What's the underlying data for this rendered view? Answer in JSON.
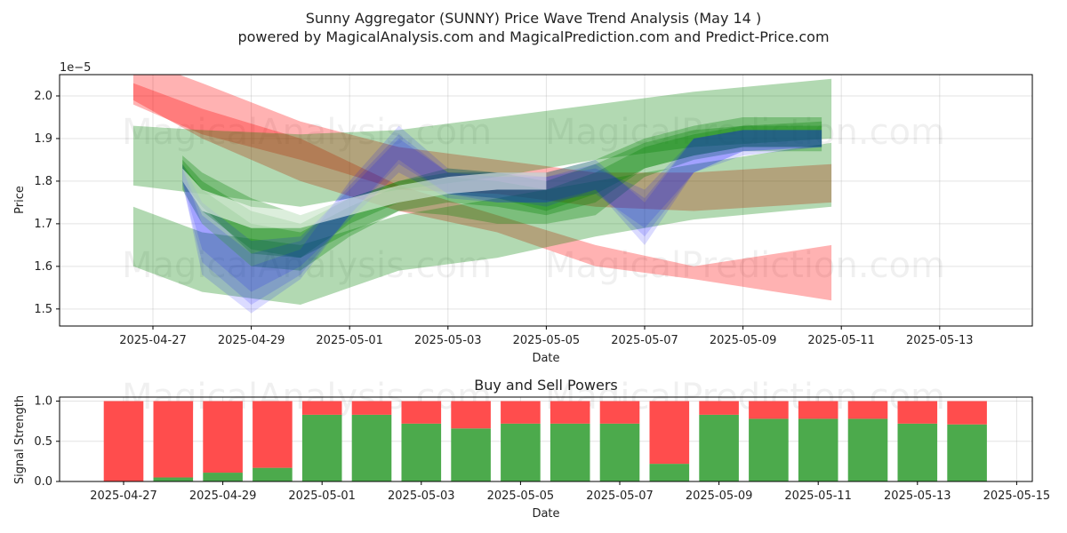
{
  "chart_data": [
    {
      "type": "area",
      "title": "Sunny Aggregator (SUNNY) Price Wave Trend Analysis (May 14 )",
      "subtitle": "powered by MagicalAnalysis.com and MagicalPrediction.com and Predict-Price.com",
      "xlabel": "Date",
      "ylabel": "Price",
      "offset_label": "1e−5",
      "ylim": [
        1.46,
        2.05
      ],
      "yticks": [
        "1.5",
        "1.6",
        "1.7",
        "1.8",
        "1.9",
        "2.0"
      ],
      "xticks": [
        "2025-04-27",
        "2025-04-29",
        "2025-05-01",
        "2025-05-03",
        "2025-05-05",
        "2025-05-07",
        "2025-05-09",
        "2025-05-11",
        "2025-05-13"
      ],
      "grid": true,
      "watermarks": [
        "MagicalAnalysis.com",
        "MagicalPrediction.com"
      ],
      "bands": [
        {
          "color": "#ff0000",
          "points": [
            [
              -0.4,
              2.03,
              1.99
            ],
            [
              1,
              1.97,
              1.9
            ],
            [
              3,
              1.9,
              1.8
            ],
            [
              5,
              1.79,
              1.73
            ],
            [
              7,
              1.72,
              1.68
            ],
            [
              9,
              1.65,
              1.6
            ],
            [
              11,
              1.6,
              1.57
            ],
            [
              13.8,
              1.65,
              1.52
            ]
          ]
        },
        {
          "color": "#ff0000",
          "points": [
            [
              -0.4,
              2.09,
              1.98
            ],
            [
              1,
              2.03,
              1.91
            ],
            [
              3,
              1.94,
              1.85
            ],
            [
              5,
              1.88,
              1.78
            ],
            [
              7,
              1.85,
              1.77
            ],
            [
              9,
              1.82,
              1.74
            ],
            [
              11,
              1.82,
              1.73
            ],
            [
              13.8,
              1.84,
              1.75
            ]
          ]
        },
        {
          "color": "#008000",
          "points": [
            [
              -0.4,
              1.93,
              1.79
            ],
            [
              1,
              1.92,
              1.77
            ],
            [
              3,
              1.91,
              1.74
            ],
            [
              5,
              1.92,
              1.78
            ],
            [
              7,
              1.95,
              1.81
            ],
            [
              9,
              1.98,
              1.85
            ],
            [
              11,
              2.01,
              1.88
            ],
            [
              13.8,
              2.04,
              1.9
            ]
          ]
        },
        {
          "color": "#008000",
          "points": [
            [
              -0.4,
              1.74,
              1.6
            ],
            [
              1,
              1.68,
              1.54
            ],
            [
              3,
              1.65,
              1.51
            ],
            [
              5,
              1.72,
              1.59
            ],
            [
              7,
              1.76,
              1.62
            ],
            [
              9,
              1.8,
              1.67
            ],
            [
              11,
              1.84,
              1.71
            ],
            [
              13.8,
              1.89,
              1.74
            ]
          ]
        },
        {
          "color": "#008000",
          "points": [
            [
              0.6,
              1.86,
              1.8
            ],
            [
              1,
              1.82,
              1.74
            ],
            [
              2,
              1.76,
              1.63
            ],
            [
              3,
              1.72,
              1.62
            ],
            [
              4,
              1.76,
              1.68
            ],
            [
              5,
              1.8,
              1.73
            ],
            [
              6,
              1.82,
              1.75
            ],
            [
              7,
              1.82,
              1.74
            ],
            [
              8,
              1.82,
              1.72
            ],
            [
              9,
              1.85,
              1.75
            ],
            [
              10,
              1.9,
              1.83
            ],
            [
              11,
              1.93,
              1.86
            ],
            [
              12,
              1.95,
              1.88
            ],
            [
              13.6,
              1.95,
              1.88
            ]
          ]
        },
        {
          "color": "#008000",
          "points": [
            [
              0.6,
              1.84,
              1.78
            ],
            [
              1,
              1.78,
              1.7
            ],
            [
              2,
              1.7,
              1.6
            ],
            [
              3,
              1.68,
              1.59
            ],
            [
              4,
              1.74,
              1.67
            ],
            [
              5,
              1.79,
              1.73
            ],
            [
              6,
              1.81,
              1.72
            ],
            [
              7,
              1.8,
              1.7
            ],
            [
              8,
              1.78,
              1.7
            ],
            [
              9,
              1.82,
              1.72
            ],
            [
              10,
              1.88,
              1.81
            ],
            [
              11,
              1.91,
              1.85
            ],
            [
              12,
              1.93,
              1.87
            ],
            [
              13.6,
              1.94,
              1.87
            ]
          ]
        },
        {
          "color": "#008000",
          "points": [
            [
              0.6,
              1.85,
              1.8
            ],
            [
              1,
              1.8,
              1.73
            ],
            [
              2,
              1.73,
              1.64
            ],
            [
              3,
              1.7,
              1.62
            ],
            [
              4,
              1.76,
              1.7
            ],
            [
              5,
              1.8,
              1.75
            ],
            [
              6,
              1.83,
              1.77
            ],
            [
              7,
              1.82,
              1.76
            ],
            [
              8,
              1.8,
              1.73
            ],
            [
              9,
              1.84,
              1.77
            ],
            [
              10,
              1.89,
              1.83
            ],
            [
              11,
              1.92,
              1.86
            ],
            [
              12,
              1.93,
              1.88
            ],
            [
              13.6,
              1.93,
              1.88
            ]
          ]
        },
        {
          "color": "#0000ff",
          "points": [
            [
              0.6,
              1.83,
              1.8
            ],
            [
              1,
              1.7,
              1.58
            ],
            [
              2,
              1.6,
              1.49
            ],
            [
              3,
              1.64,
              1.57
            ],
            [
              4,
              1.8,
              1.72
            ],
            [
              5,
              1.93,
              1.85
            ],
            [
              6,
              1.83,
              1.77
            ],
            [
              7,
              1.82,
              1.75
            ],
            [
              8,
              1.82,
              1.75
            ],
            [
              9,
              1.85,
              1.78
            ],
            [
              10,
              1.75,
              1.65
            ],
            [
              11,
              1.9,
              1.82
            ],
            [
              12,
              1.92,
              1.87
            ],
            [
              13.6,
              1.92,
              1.88
            ]
          ]
        },
        {
          "color": "#0000ff",
          "points": [
            [
              0.6,
              1.84,
              1.8
            ],
            [
              1,
              1.75,
              1.64
            ],
            [
              2,
              1.66,
              1.54
            ],
            [
              3,
              1.67,
              1.6
            ],
            [
              4,
              1.78,
              1.71
            ],
            [
              5,
              1.9,
              1.82
            ],
            [
              6,
              1.82,
              1.76
            ],
            [
              7,
              1.81,
              1.75
            ],
            [
              8,
              1.81,
              1.75
            ],
            [
              9,
              1.83,
              1.77
            ],
            [
              10,
              1.78,
              1.69
            ],
            [
              11,
              1.9,
              1.82
            ],
            [
              12,
              1.92,
              1.87
            ],
            [
              13.6,
              1.92,
              1.88
            ]
          ]
        },
        {
          "color": "#0000ff",
          "points": [
            [
              0.6,
              1.83,
              1.79
            ],
            [
              1,
              1.72,
              1.61
            ],
            [
              2,
              1.63,
              1.51
            ],
            [
              3,
              1.66,
              1.58
            ],
            [
              4,
              1.79,
              1.72
            ],
            [
              5,
              1.91,
              1.84
            ],
            [
              6,
              1.82,
              1.77
            ],
            [
              7,
              1.82,
              1.76
            ],
            [
              8,
              1.81,
              1.74
            ],
            [
              9,
              1.84,
              1.78
            ],
            [
              10,
              1.76,
              1.67
            ],
            [
              11,
              1.9,
              1.82
            ],
            [
              12,
              1.92,
              1.86
            ],
            [
              13.6,
              1.92,
              1.88
            ]
          ]
        },
        {
          "color": "#ffffff",
          "points": [
            [
              0.6,
              1.83,
              1.8
            ],
            [
              1,
              1.78,
              1.73
            ],
            [
              2,
              1.74,
              1.69
            ],
            [
              3,
              1.73,
              1.69
            ],
            [
              4,
              1.76,
              1.72
            ],
            [
              5,
              1.79,
              1.75
            ],
            [
              6,
              1.81,
              1.77
            ],
            [
              7,
              1.82,
              1.78
            ],
            [
              8,
              1.82,
              1.78
            ]
          ]
        }
      ]
    },
    {
      "type": "bar",
      "title": "Buy and Sell Powers",
      "xlabel": "Date",
      "ylabel": "Signal Strength",
      "ylim": [
        0,
        1.05
      ],
      "yticks": [
        "0.0",
        "0.5",
        "1.0"
      ],
      "xticks": [
        "2025-04-27",
        "2025-04-29",
        "2025-05-01",
        "2025-05-03",
        "2025-05-05",
        "2025-05-07",
        "2025-05-09",
        "2025-05-11",
        "2025-05-13",
        "2025-05-15"
      ],
      "grid": true,
      "categories": [
        "2025-04-27",
        "2025-04-28",
        "2025-04-29",
        "2025-04-30",
        "2025-05-01",
        "2025-05-02",
        "2025-05-03",
        "2025-05-04",
        "2025-05-05",
        "2025-05-06",
        "2025-05-07",
        "2025-05-08",
        "2025-05-09",
        "2025-05-10",
        "2025-05-11",
        "2025-05-12",
        "2025-05-13",
        "2025-05-14"
      ],
      "series": [
        {
          "color": "#4caa4c",
          "values": [
            0.0,
            0.05,
            0.11,
            0.17,
            0.83,
            0.83,
            0.72,
            0.66,
            0.72,
            0.72,
            0.72,
            0.22,
            0.83,
            0.78,
            0.78,
            0.78,
            0.72,
            0.71
          ]
        },
        {
          "color": "#ff4d4d",
          "values": [
            1.0,
            0.95,
            0.89,
            0.83,
            0.17,
            0.17,
            0.28,
            0.34,
            0.28,
            0.28,
            0.28,
            0.78,
            0.17,
            0.22,
            0.22,
            0.22,
            0.28,
            0.29
          ]
        }
      ]
    }
  ]
}
